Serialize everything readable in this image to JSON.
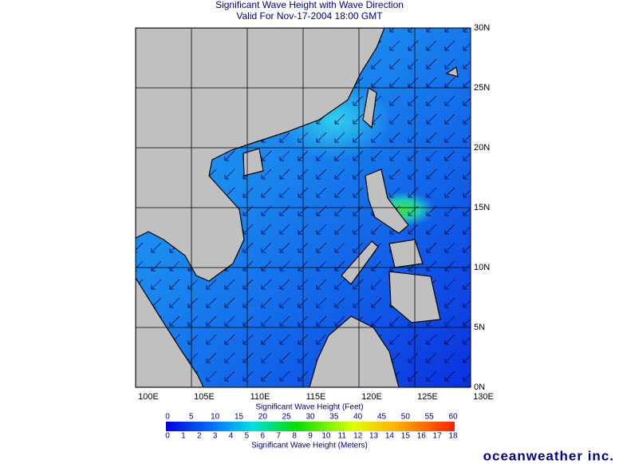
{
  "header": {
    "title": "Significant Wave Height with Wave Direction",
    "subtitle": "Valid For Nov-17-2004 18:00 GMT"
  },
  "map": {
    "lon_labels": [
      "100E",
      "105E",
      "110E",
      "115E",
      "120E",
      "125E",
      "130E"
    ],
    "lat_labels": [
      "30N",
      "25N",
      "20N",
      "15N",
      "10N",
      "5N",
      "0N"
    ]
  },
  "colorbar": {
    "feet_label": "Significant Wave Height (Feet)",
    "feet_ticks": [
      0,
      5,
      10,
      15,
      20,
      25,
      30,
      35,
      40,
      45,
      50,
      55,
      60
    ],
    "meters_label": "Significant Wave Height (Meters)",
    "meters_ticks": [
      0,
      1,
      2,
      3,
      4,
      5,
      6,
      7,
      8,
      9,
      10,
      11,
      12,
      13,
      14,
      15,
      16,
      17,
      18
    ]
  },
  "brand": "oceanweather inc."
}
